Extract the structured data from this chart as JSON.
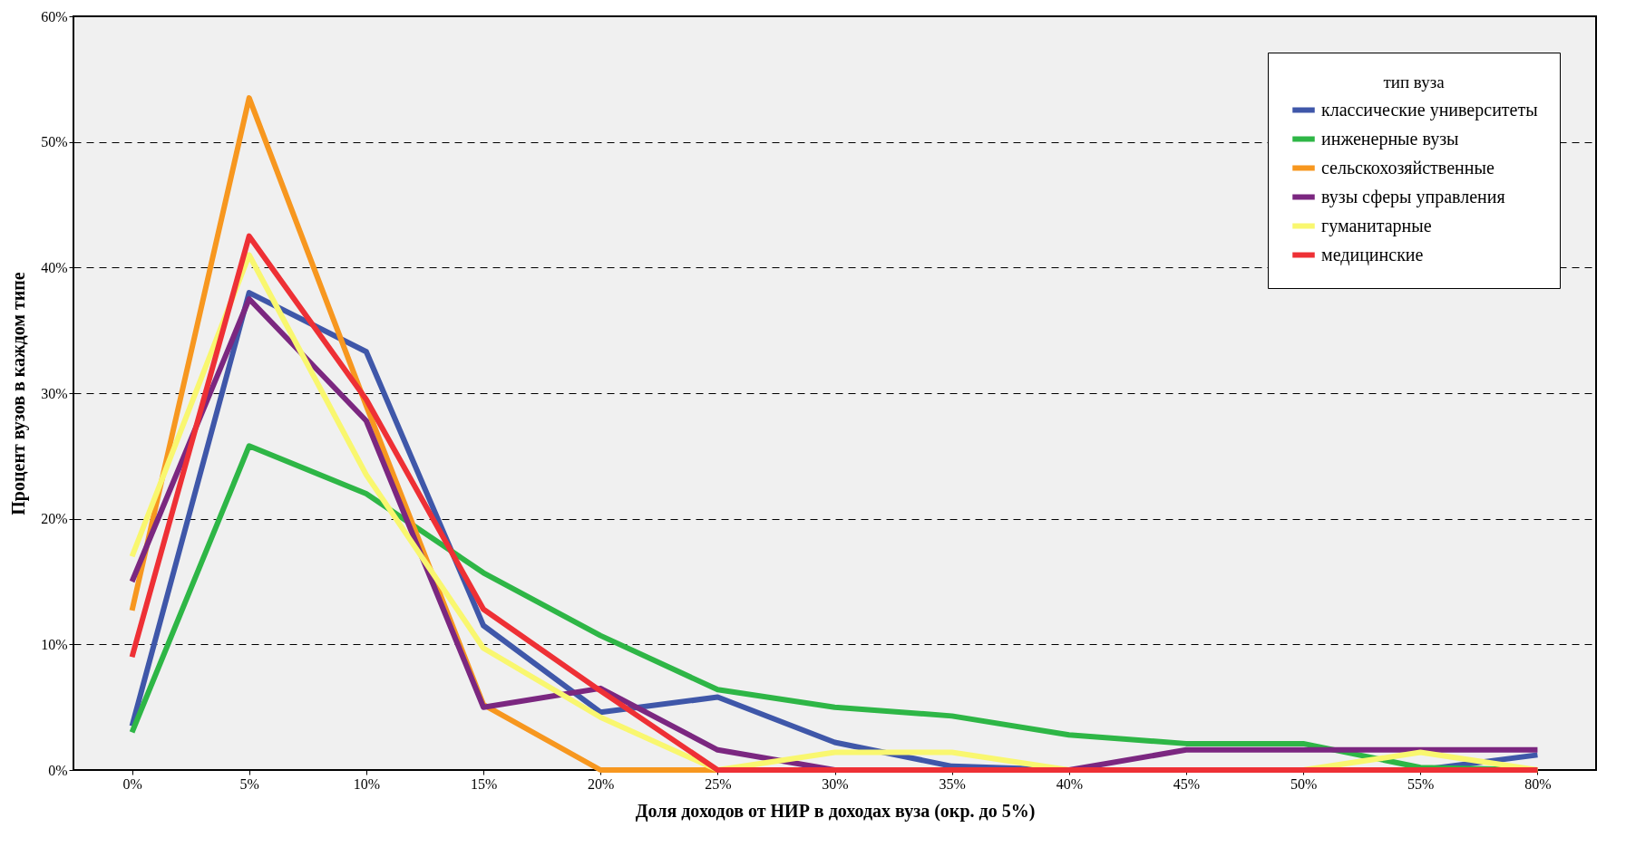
{
  "chart_data": {
    "type": "line",
    "xlabel": "Доля доходов от НИР в доходах вуза (окр. до 5%)",
    "ylabel": "Процент вузов в каждом типе",
    "legend_title": "тип вуза",
    "legend": "top right",
    "grid": "y",
    "line_style": "solid",
    "marker": "none",
    "categories": [
      "0%",
      "5%",
      "10%",
      "15%",
      "20%",
      "25%",
      "30%",
      "35%",
      "40%",
      "45%",
      "50%",
      "55%",
      "80%"
    ],
    "ylim": [
      0,
      60
    ],
    "yticks": [
      {
        "value": 0,
        "label": "0%"
      },
      {
        "value": 10,
        "label": "10%"
      },
      {
        "value": 20,
        "label": "20%"
      },
      {
        "value": 30,
        "label": "30%"
      },
      {
        "value": 40,
        "label": "40%"
      },
      {
        "value": 50,
        "label": "50%"
      },
      {
        "value": 60,
        "label": "60%"
      }
    ],
    "series": [
      {
        "name": "классические университеты",
        "color": "#3f57a9",
        "values": [
          3.5,
          38,
          33.3,
          11.5,
          4.6,
          5.8,
          2.2,
          0.3,
          0,
          0,
          0,
          0,
          1.2
        ]
      },
      {
        "name": "инженерные вузы",
        "color": "#2eb646",
        "values": [
          3,
          25.8,
          22,
          15.7,
          10.7,
          6.4,
          5,
          4.3,
          2.8,
          2.1,
          2.1,
          0.2,
          0
        ]
      },
      {
        "name": "сельскохозяйственные",
        "color": "#f7971f",
        "values": [
          12.7,
          53.5,
          29,
          5.2,
          0,
          0,
          0,
          0,
          0,
          0,
          0,
          0,
          0
        ]
      },
      {
        "name": "вузы сферы управления",
        "color": "#7b2780",
        "values": [
          15,
          37.5,
          27.8,
          5,
          6.5,
          1.6,
          0,
          0,
          0,
          1.6,
          1.6,
          1.6,
          1.6
        ]
      },
      {
        "name": "гуманитарные",
        "color": "#f9f76f",
        "values": [
          17,
          41,
          23.5,
          9.7,
          4.2,
          0,
          1.4,
          1.4,
          0,
          0,
          0,
          1.4,
          0
        ]
      },
      {
        "name": "медицинские",
        "color": "#ee3035",
        "values": [
          9,
          42.5,
          29.5,
          12.8,
          6.3,
          0,
          0,
          0,
          0,
          0,
          0,
          0,
          0
        ]
      }
    ]
  }
}
